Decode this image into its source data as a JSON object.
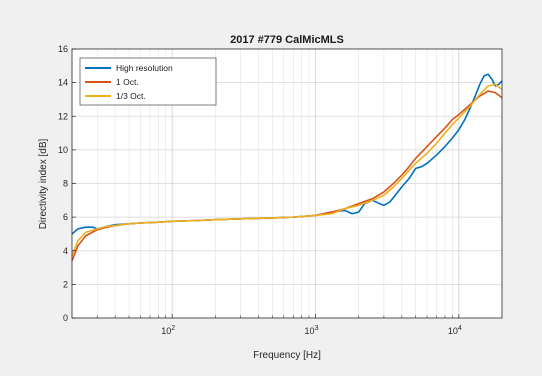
{
  "chart_data": {
    "type": "line",
    "title": "2017 #779 CalMicMLS",
    "xlabel": "Frequency [Hz]",
    "ylabel": "Directivity index [dB]",
    "x_scale": "log",
    "xlim": [
      20,
      20000
    ],
    "ylim": [
      0,
      16
    ],
    "grid": true,
    "minor_grid": true,
    "legend_position": "top-left",
    "y_ticks": [
      "0",
      "2",
      "4",
      "6",
      "8",
      "10",
      "12",
      "14",
      "16"
    ],
    "x_ticks": [
      {
        "value": 100,
        "base": "10",
        "exp": "2"
      },
      {
        "value": 1000,
        "base": "10",
        "exp": "3"
      },
      {
        "value": 10000,
        "base": "10",
        "exp": "4"
      }
    ],
    "series": [
      {
        "name": "High resolution",
        "color": "#0072bd",
        "x": [
          20,
          22,
          25,
          28,
          30,
          35,
          40,
          50,
          60,
          80,
          100,
          150,
          200,
          300,
          500,
          700,
          1000,
          1300,
          1600,
          1800,
          2000,
          2200,
          2500,
          2800,
          3000,
          3300,
          3600,
          4000,
          4500,
          5000,
          5500,
          6000,
          7000,
          8000,
          9000,
          10000,
          11000,
          12000,
          13000,
          14000,
          15000,
          16000,
          17000,
          18000,
          19000,
          20000
        ],
        "y": [
          5.0,
          5.3,
          5.4,
          5.4,
          5.3,
          5.45,
          5.55,
          5.6,
          5.65,
          5.7,
          5.75,
          5.8,
          5.85,
          5.9,
          5.95,
          6.0,
          6.1,
          6.3,
          6.4,
          6.2,
          6.3,
          6.8,
          7.0,
          6.8,
          6.7,
          6.9,
          7.3,
          7.8,
          8.3,
          8.9,
          9.0,
          9.2,
          9.7,
          10.2,
          10.7,
          11.2,
          11.8,
          12.5,
          13.2,
          13.9,
          14.4,
          14.5,
          14.2,
          13.8,
          13.9,
          14.1
        ]
      },
      {
        "name": "1 Oct.",
        "color": "#d95319",
        "x": [
          20,
          22,
          25,
          30,
          35,
          40,
          50,
          60,
          80,
          100,
          150,
          200,
          300,
          500,
          700,
          1000,
          1300,
          1600,
          2000,
          2500,
          3000,
          3500,
          4000,
          4500,
          5000,
          6000,
          7000,
          8000,
          9000,
          10000,
          12000,
          14000,
          16000,
          18000,
          20000
        ],
        "y": [
          3.4,
          4.3,
          4.9,
          5.25,
          5.4,
          5.5,
          5.6,
          5.65,
          5.7,
          5.75,
          5.8,
          5.85,
          5.9,
          5.95,
          6.0,
          6.1,
          6.3,
          6.5,
          6.8,
          7.1,
          7.5,
          8.0,
          8.5,
          9.0,
          9.5,
          10.2,
          10.8,
          11.3,
          11.8,
          12.1,
          12.7,
          13.2,
          13.5,
          13.4,
          13.1
        ]
      },
      {
        "name": "1/3 Oct.",
        "color": "#edb120",
        "x": [
          20,
          22,
          25,
          30,
          35,
          40,
          50,
          60,
          80,
          100,
          150,
          200,
          300,
          500,
          700,
          1000,
          1300,
          1600,
          2000,
          2500,
          3000,
          3500,
          4000,
          4500,
          5000,
          6000,
          7000,
          8000,
          9000,
          10000,
          12000,
          14000,
          16000,
          18000,
          20000
        ],
        "y": [
          3.7,
          4.6,
          5.1,
          5.3,
          5.45,
          5.5,
          5.6,
          5.65,
          5.7,
          5.75,
          5.8,
          5.85,
          5.9,
          5.95,
          6.0,
          6.1,
          6.2,
          6.5,
          6.7,
          7.0,
          7.3,
          7.8,
          8.3,
          8.8,
          9.2,
          9.8,
          10.4,
          11.0,
          11.5,
          11.9,
          12.6,
          13.3,
          13.8,
          13.9,
          13.6
        ]
      }
    ]
  }
}
